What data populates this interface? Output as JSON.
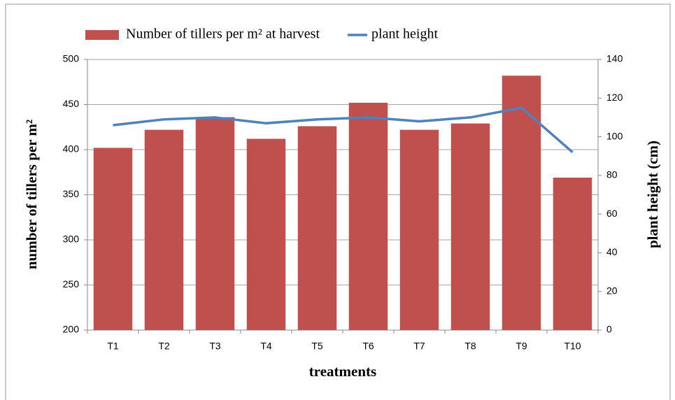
{
  "chart_data": {
    "type": "bar",
    "categories": [
      "T1",
      "T2",
      "T3",
      "T4",
      "T5",
      "T6",
      "T7",
      "T8",
      "T9",
      "T10"
    ],
    "series": [
      {
        "name": "Number of tillers per m² at harvest",
        "type": "bar",
        "color": "#c0504d",
        "values": [
          402,
          422,
          436,
          412,
          426,
          452,
          422,
          429,
          482,
          369
        ]
      },
      {
        "name": "plant height",
        "type": "line",
        "axis": "y2",
        "color": "#4f81bd",
        "values": [
          106,
          109,
          110,
          107,
          109,
          110,
          108,
          110,
          115,
          92
        ]
      }
    ],
    "xlabel": "treatments",
    "ylabel": "number of tillers per m²",
    "y2label": "plant height (cm)",
    "ylim": [
      200,
      500
    ],
    "yticks": [
      200,
      250,
      300,
      350,
      400,
      450,
      500
    ],
    "y2lim": [
      0,
      140
    ],
    "y2ticks": [
      0,
      20,
      40,
      60,
      80,
      100,
      120,
      140
    ],
    "grid": true,
    "legend": "top"
  }
}
